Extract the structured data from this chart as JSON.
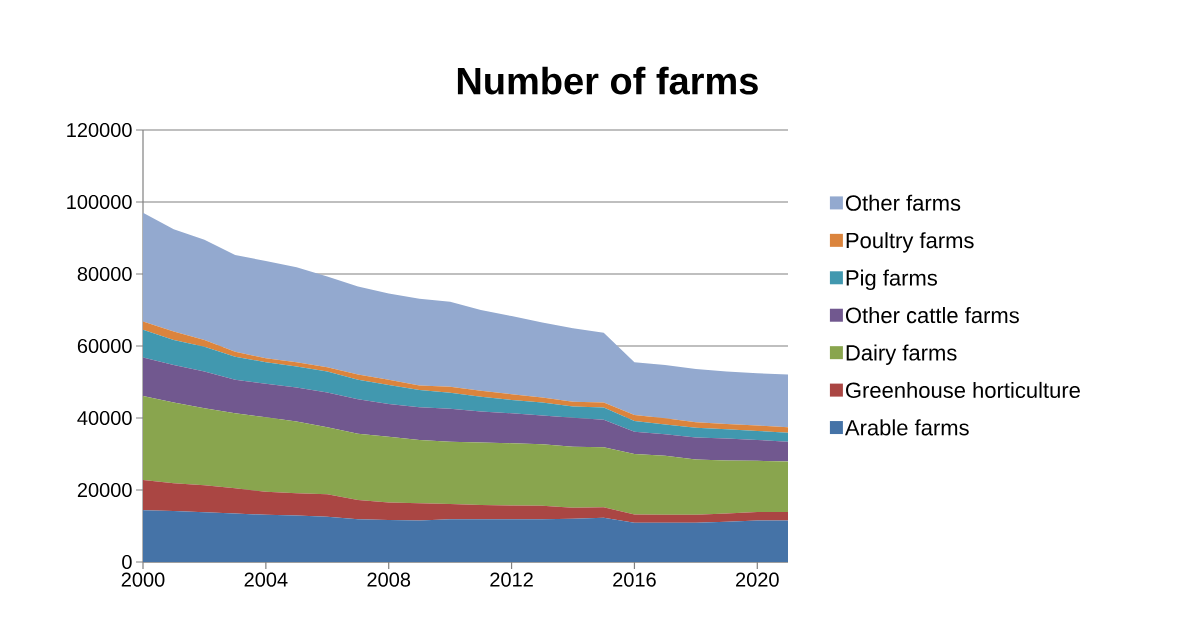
{
  "chart_data": {
    "type": "area",
    "title": "Number of farms",
    "stacked": true,
    "grid": "y",
    "legend": "right",
    "x": [
      2000,
      2001,
      2002,
      2003,
      2004,
      2005,
      2006,
      2007,
      2008,
      2009,
      2010,
      2011,
      2012,
      2013,
      2014,
      2015,
      2016,
      2017,
      2018,
      2019,
      2020,
      2021
    ],
    "xlim": [
      2000,
      2021
    ],
    "xticks": [
      2000,
      2004,
      2008,
      2012,
      2016,
      2020
    ],
    "ylim": [
      0,
      120000
    ],
    "yticks": [
      0,
      20000,
      40000,
      60000,
      80000,
      100000,
      120000
    ],
    "series": [
      {
        "name": "Arable farms",
        "color": "#4573a7",
        "values": [
          14400,
          14200,
          13800,
          13500,
          13100,
          12900,
          12600,
          11900,
          11700,
          11500,
          11900,
          11900,
          11900,
          11900,
          12000,
          12300,
          10900,
          10900,
          10900,
          11200,
          11500,
          11500
        ]
      },
      {
        "name": "Greenhouse horticulture",
        "color": "#aa4643",
        "values": [
          8400,
          7700,
          7500,
          7000,
          6400,
          6200,
          6200,
          5300,
          4800,
          4800,
          4200,
          3900,
          3800,
          3700,
          3100,
          2900,
          2300,
          2200,
          2200,
          2300,
          2400,
          2400
        ]
      },
      {
        "name": "Dairy farms",
        "color": "#89a54e",
        "values": [
          23300,
          22400,
          21400,
          20800,
          20700,
          19900,
          18600,
          18400,
          18300,
          17600,
          17300,
          17400,
          17300,
          17100,
          16900,
          16700,
          16800,
          16400,
          15400,
          14700,
          14200,
          14000
        ]
      },
      {
        "name": "Other cattle farms",
        "color": "#71588f",
        "values": [
          10700,
          10400,
          10200,
          9300,
          9300,
          9500,
          9700,
          9600,
          9100,
          9100,
          9200,
          8600,
          8300,
          8000,
          8100,
          7600,
          6200,
          6000,
          6100,
          6100,
          5800,
          5500
        ]
      },
      {
        "name": "Pig farms",
        "color": "#4198af",
        "values": [
          7700,
          7000,
          6900,
          6400,
          6000,
          5800,
          5800,
          5400,
          5300,
          4800,
          4400,
          4100,
          3700,
          3600,
          3100,
          3400,
          3000,
          2700,
          2700,
          2600,
          2500,
          2500
        ]
      },
      {
        "name": "Poultry farms",
        "color": "#db843d",
        "values": [
          2300,
          2300,
          1900,
          1400,
          1100,
          1200,
          1200,
          1500,
          1400,
          1200,
          1700,
          1700,
          1600,
          1400,
          1300,
          1400,
          1600,
          1700,
          1500,
          1400,
          1500,
          1500
        ]
      },
      {
        "name": "Other farms",
        "color": "#93a9cf",
        "values": [
          30200,
          28400,
          27800,
          26900,
          27000,
          26400,
          25200,
          24400,
          24000,
          24100,
          23600,
          22400,
          21700,
          20800,
          20400,
          19400,
          14700,
          14800,
          14800,
          14600,
          14500,
          14700
        ]
      }
    ]
  }
}
